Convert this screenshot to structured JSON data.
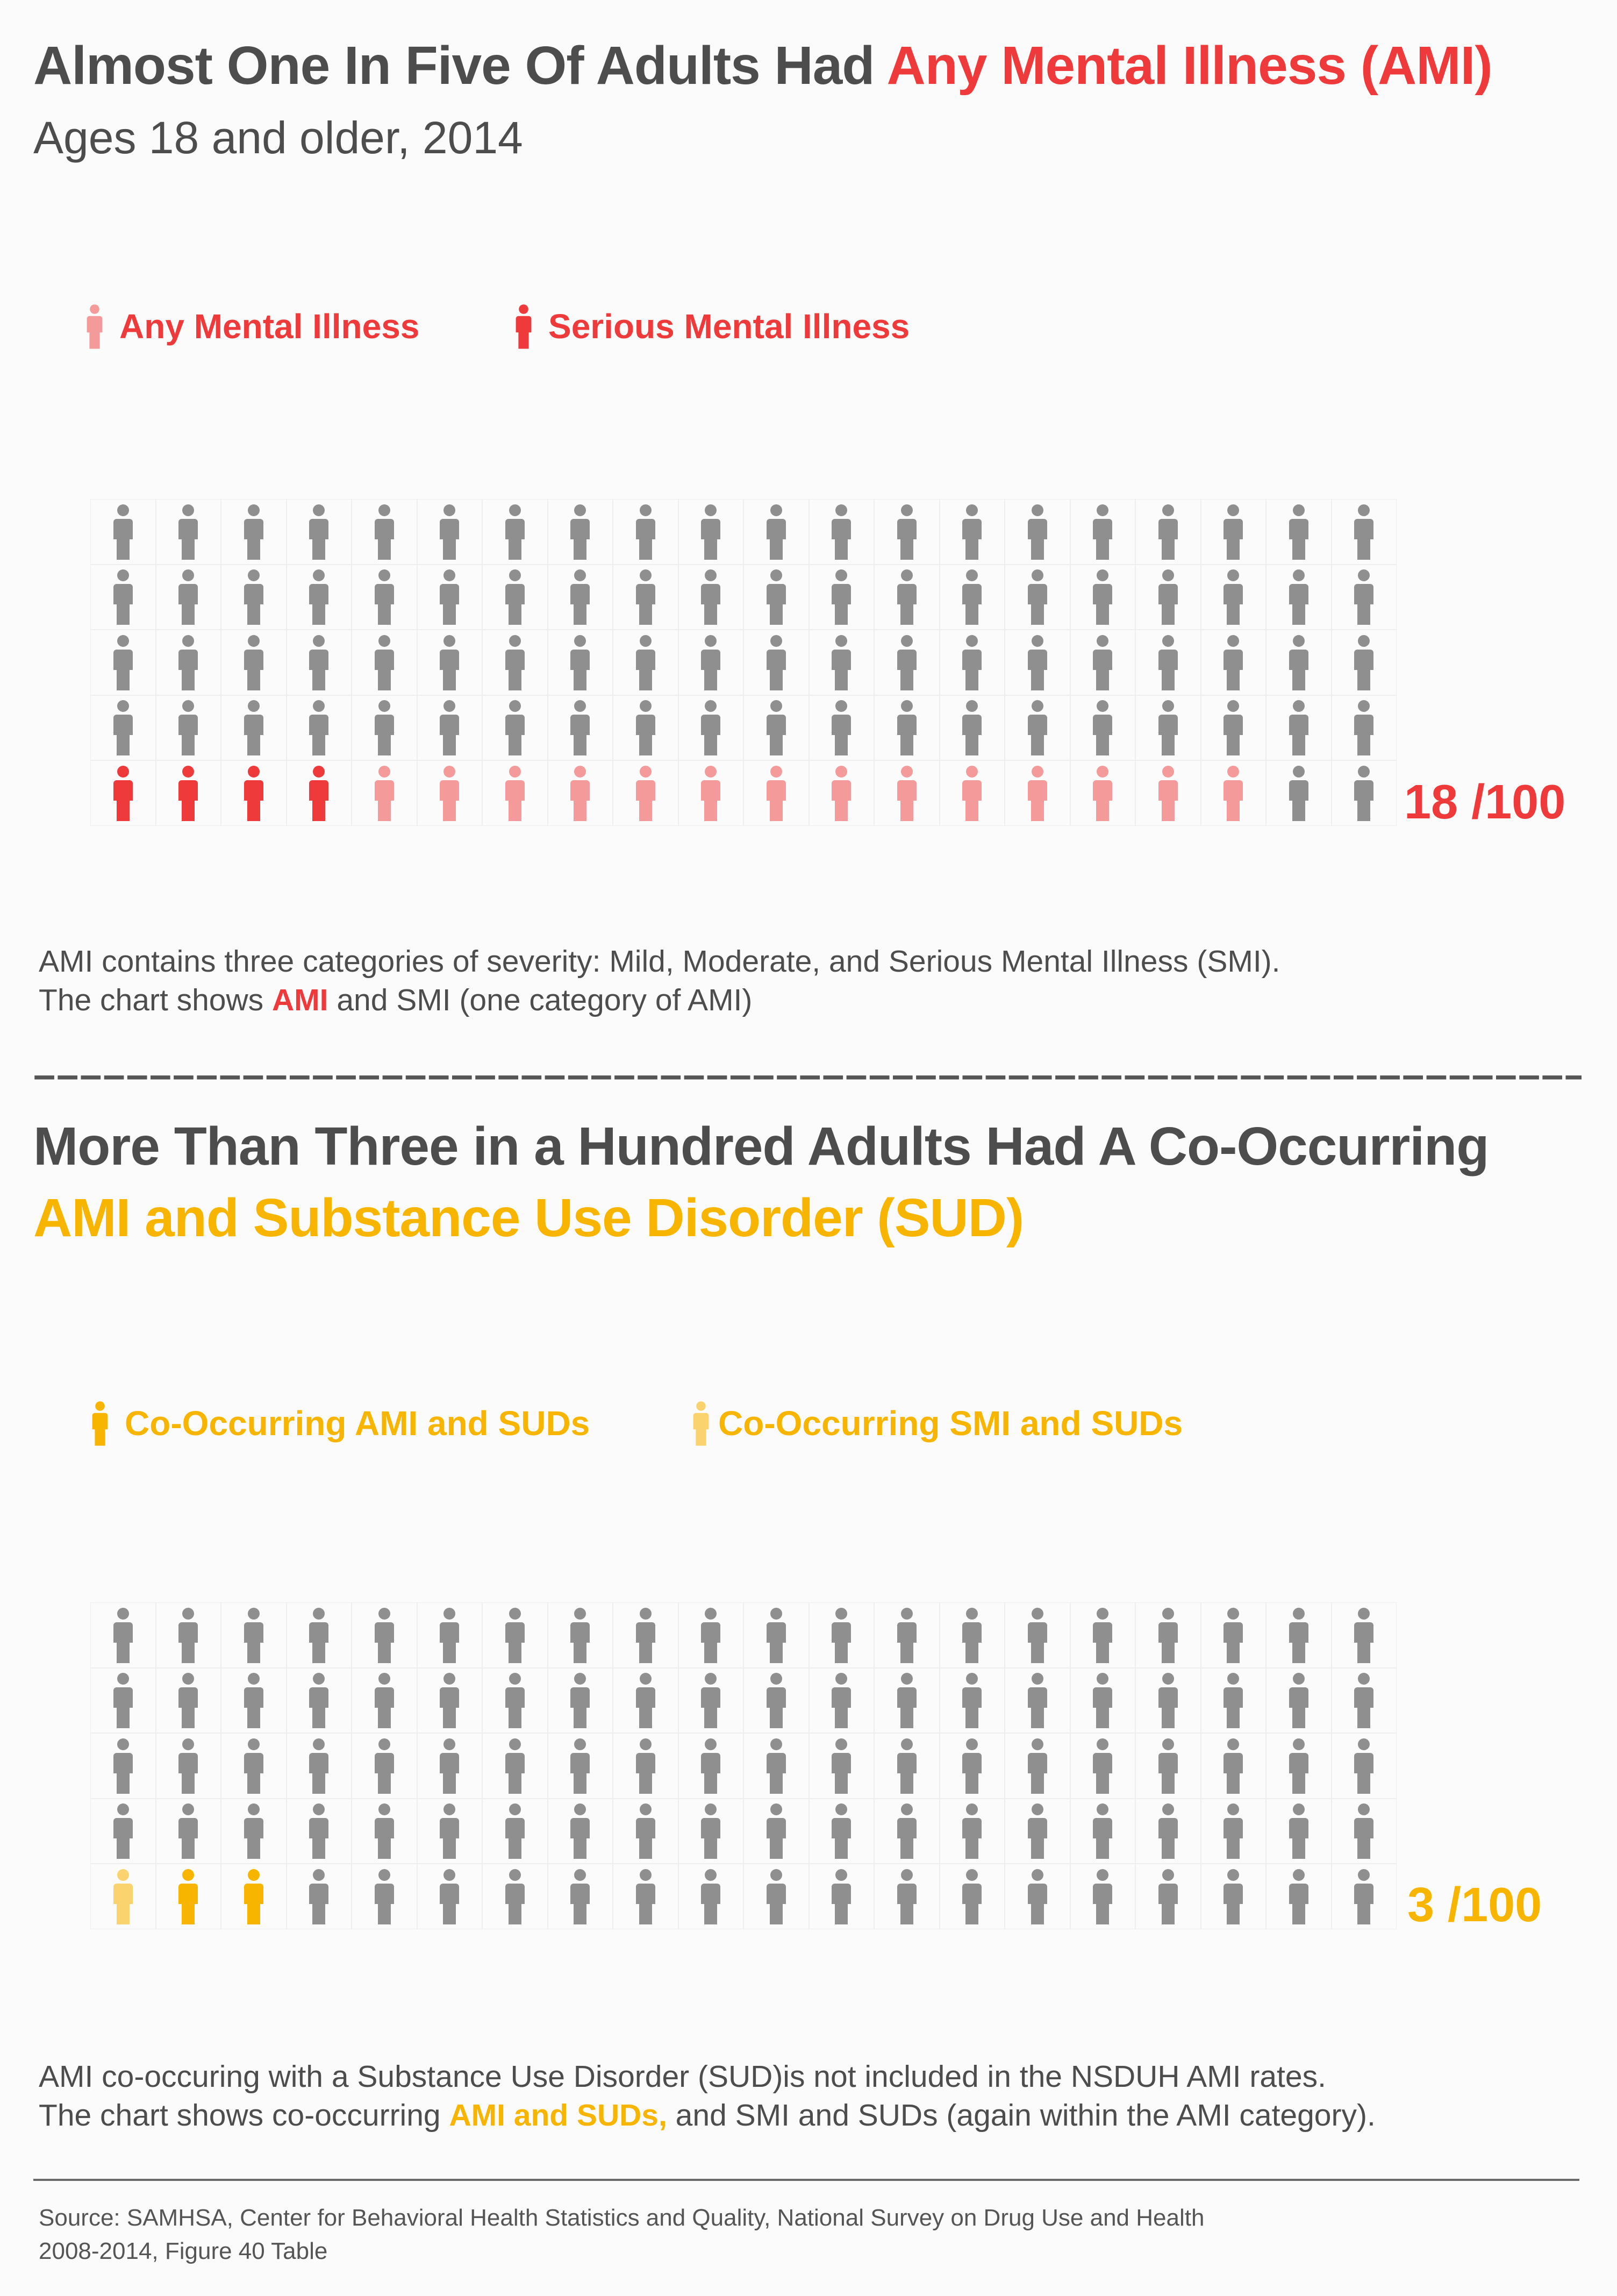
{
  "colors": {
    "gray": "#8f8f8f",
    "ami": "#f59a9a",
    "smi": "#ee3a3a",
    "red_text": "#ee3a3a",
    "cooccurring_ami": "#f7b500",
    "cooccurring_smi": "#fbd36e",
    "yellow_text": "#f7b500"
  },
  "section1": {
    "title_part1": "Almost One In Five Of Adults Had ",
    "title_part2": "Any Mental Illness (AMI)",
    "subtitle": "Ages 18 and older, 2014",
    "legend": [
      {
        "label": "Any Mental Illness",
        "icon": "person-icon",
        "color": "#f59a9a"
      },
      {
        "label": "Serious Mental Illness",
        "icon": "person-icon",
        "color": "#ee3a3a"
      }
    ],
    "ratio": "18 /100",
    "note_line1": "AMI contains three categories of severity: Mild, Moderate, and Serious Mental Illness (SMI).",
    "note_line2_a": "The chart shows ",
    "note_line2_b": "AMI",
    "note_line2_c": " and SMI (one category of AMI)"
  },
  "divider": "––––––––––––––––––––––––––––––––––––––––––––––––––––––––––––––––––––––––––––––––",
  "section2": {
    "title_line1": "More Than Three in a Hundred Adults Had A Co-Occurring",
    "title_line2": "AMI and Substance Use Disorder (SUD)",
    "legend": [
      {
        "label": "Co-Occurring AMI and SUDs",
        "icon": "person-icon",
        "color": "#f7b500"
      },
      {
        "label": "Co-Occurring SMI and SUDs",
        "icon": "person-icon",
        "color": "#fbd36e"
      }
    ],
    "ratio": "3 /100",
    "note_line1": "AMI co-occuring with a Substance Use Disorder (SUD)is not included in the NSDUH AMI rates.",
    "note_line2_a": "The chart shows co-occurring ",
    "note_line2_b": "AMI and SUDs,",
    "note_line2_c": " and SMI and SUDs (again within the AMI category)."
  },
  "source_line1": "Source: SAMHSA, Center for Behavioral Health Statistics and Quality, National Survey on Drug Use and Health",
  "source_line2": "2008-2014,  Figure 40 Table",
  "chart_data": [
    {
      "type": "waffle",
      "rows": 5,
      "columns": 20,
      "total": 100,
      "series": [
        {
          "name": "Serious Mental Illness",
          "value": 4,
          "color": "#ee3a3a"
        },
        {
          "name": "Any Mental Illness",
          "value": 14,
          "color": "#f59a9a"
        },
        {
          "value": 82,
          "color": "#8f8f8f"
        }
      ],
      "highlighted_total": 18,
      "legend_position": "top-left"
    },
    {
      "type": "waffle",
      "rows": 5,
      "columns": 20,
      "total": 100,
      "series": [
        {
          "name": "Co-Occurring SMI and SUDs",
          "value": 1,
          "color": "#fbd36e"
        },
        {
          "name": "Co-Occurring AMI and SUDs",
          "value": 2,
          "color": "#f7b500"
        },
        {
          "value": 97,
          "color": "#8f8f8f"
        }
      ],
      "highlighted_total": 3,
      "legend_position": "top-left"
    }
  ]
}
